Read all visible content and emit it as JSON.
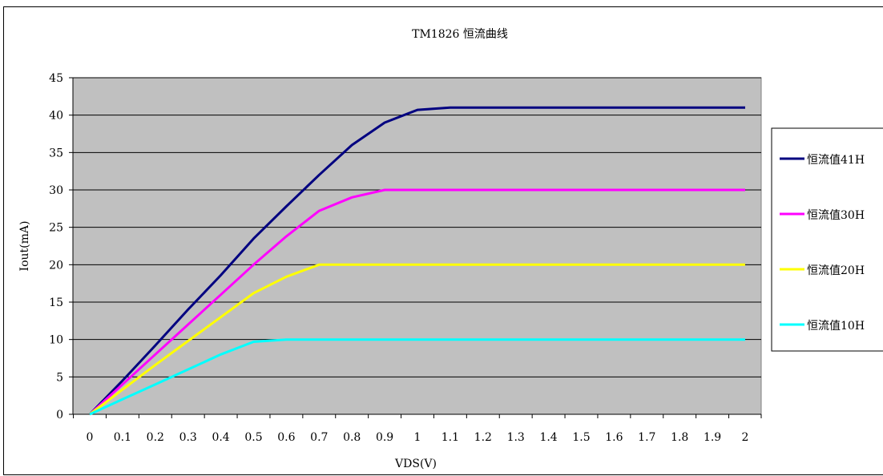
{
  "chart_data": {
    "type": "line",
    "title": "TM1826 恒流曲线",
    "xlabel": "VDS(V)",
    "ylabel": "Iout(mA)",
    "x": [
      0,
      0.1,
      0.2,
      0.3,
      0.4,
      0.5,
      0.6,
      0.7,
      0.8,
      0.9,
      1,
      1.1,
      1.2,
      1.3,
      1.4,
      1.5,
      1.6,
      1.7,
      1.8,
      1.9,
      2
    ],
    "x_tick_labels": [
      "0",
      "0.1",
      "0.2",
      "0.3",
      "0.4",
      "0.5",
      "0.6",
      "0.7",
      "0.8",
      "0.9",
      "1",
      "1.1",
      "1.2",
      "1.3",
      "1.4",
      "1.5",
      "1.6",
      "1.7",
      "1.8",
      "1.9",
      "2"
    ],
    "y_tick_labels": [
      "0",
      "5",
      "10",
      "15",
      "20",
      "25",
      "30",
      "35",
      "40",
      "45"
    ],
    "ylim": [
      0,
      45
    ],
    "grid": true,
    "plot_background": "#C0C0C0",
    "legend_position": "right",
    "series": [
      {
        "name": "恒流值41H",
        "color": "#000080",
        "values": [
          0,
          4.5,
          9.2,
          14,
          18.6,
          23.5,
          27.8,
          32,
          36,
          39,
          40.7,
          41,
          41,
          41,
          41,
          41,
          41,
          41,
          41,
          41,
          41
        ]
      },
      {
        "name": "恒流值30H",
        "color": "#FF00FF",
        "values": [
          0,
          4,
          8,
          12,
          16,
          20,
          23.8,
          27.2,
          29,
          30,
          30,
          30,
          30,
          30,
          30,
          30,
          30,
          30,
          30,
          30,
          30
        ]
      },
      {
        "name": "恒流值20H",
        "color": "#FFFF00",
        "values": [
          0,
          3.3,
          6.6,
          9.8,
          13,
          16.2,
          18.4,
          20,
          20,
          20,
          20,
          20,
          20,
          20,
          20,
          20,
          20,
          20,
          20,
          20,
          20
        ]
      },
      {
        "name": "恒流值10H",
        "color": "#00FFFF",
        "values": [
          0,
          2,
          4,
          6,
          8,
          9.7,
          10,
          10,
          10,
          10,
          10,
          10,
          10,
          10,
          10,
          10,
          10,
          10,
          10,
          10,
          10
        ]
      }
    ]
  }
}
